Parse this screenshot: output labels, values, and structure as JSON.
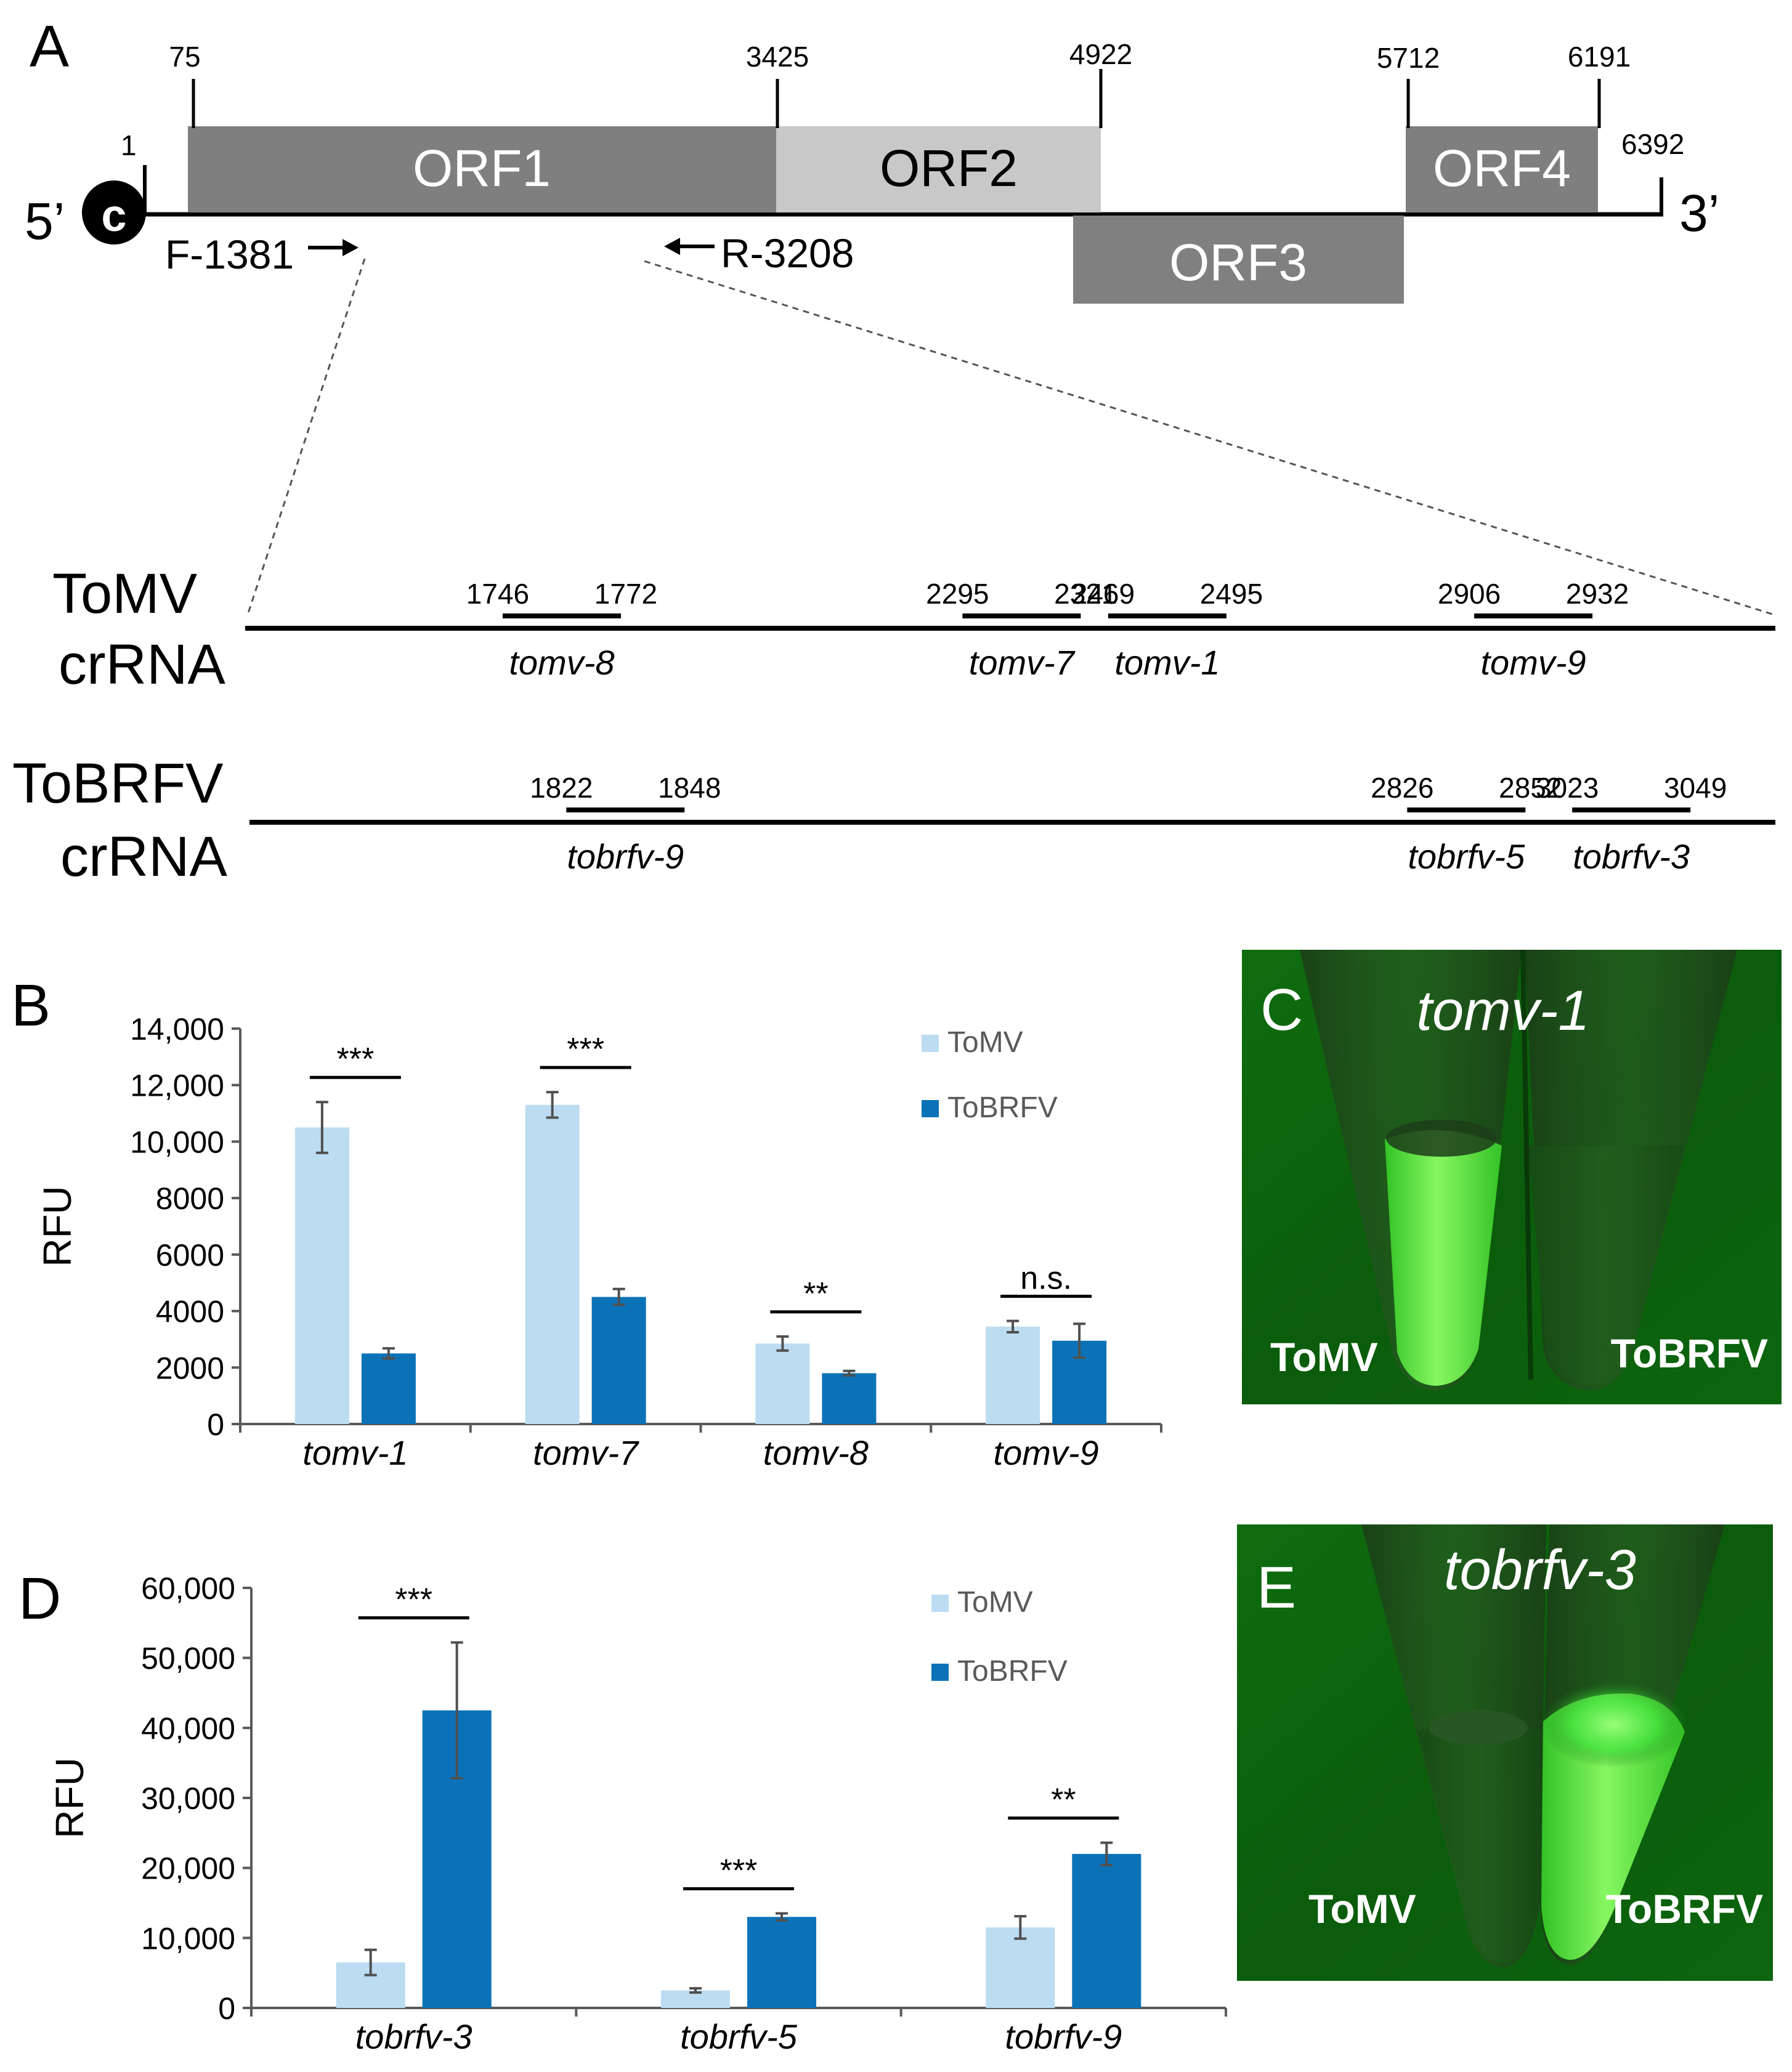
{
  "panel_letters": {
    "a": "A",
    "b": "B",
    "c": "C",
    "d": "D",
    "e": "E"
  },
  "genome": {
    "five_prime": "5’",
    "three_prime": "3’",
    "cap": "c",
    "start_pos": "1",
    "end_pos": "6392",
    "orfs": [
      {
        "label": "ORF1",
        "start": "75",
        "end": "3425",
        "color": "#7f7f7f"
      },
      {
        "label": "ORF2",
        "start": "3425",
        "end": "4922",
        "color": "#c8c8c8"
      },
      {
        "label": "ORF3",
        "start": "",
        "end": "",
        "color": "#808080"
      },
      {
        "label": "ORF4",
        "start": "5712",
        "end": "6191",
        "color": "#7f7f7f"
      }
    ],
    "primer_forward": "F-1381",
    "primer_reverse": "R-3208"
  },
  "crrna_map": {
    "tomv": {
      "label_line1": "ToMV",
      "label_line2": "crRNA",
      "sites": [
        {
          "name": "tomv-8",
          "start": "1746",
          "end": "1772"
        },
        {
          "name": "tomv-7",
          "start": "2295",
          "end": "2321"
        },
        {
          "name": "tomv-1",
          "start": "2469",
          "end": "2495"
        },
        {
          "name": "tomv-9",
          "start": "2906",
          "end": "2932"
        }
      ]
    },
    "tobrfv": {
      "label_line1": "ToBRFV",
      "label_line2": "crRNA",
      "sites": [
        {
          "name": "tobrfv-9",
          "start": "1822",
          "end": "1848"
        },
        {
          "name": "tobrfv-5",
          "start": "2826",
          "end": "2852"
        },
        {
          "name": "tobrfv-3",
          "start": "3023",
          "end": "3049"
        }
      ]
    }
  },
  "chart_data": [
    {
      "type": "bar",
      "panel": "B",
      "ylabel": "RFU",
      "ylim": [
        0,
        14000
      ],
      "yticks": [
        "0",
        "2000",
        "4000",
        "6000",
        "8000",
        "10000",
        "12000",
        "14000"
      ],
      "yticks_display": [
        "0",
        "2000",
        "4000",
        "6000",
        "8000",
        "10,000",
        "12,000",
        "14,000"
      ],
      "categories": [
        "tomv-1",
        "tomv-7",
        "tomv-8",
        "tomv-9"
      ],
      "series": [
        {
          "name": "ToMV",
          "color": "#bcdcf2",
          "values": [
            10500,
            11300,
            2850,
            3450
          ],
          "errors": [
            900,
            450,
            250,
            200
          ]
        },
        {
          "name": "ToBRFV",
          "color": "#0b72b8",
          "values": [
            2500,
            4500,
            1800,
            2950
          ],
          "errors": [
            180,
            280,
            80,
            600
          ]
        }
      ],
      "significance": [
        "***",
        "***",
        "**",
        "n.s."
      ],
      "legend_position": "top-right"
    },
    {
      "type": "bar",
      "panel": "D",
      "ylabel": "RFU",
      "ylim": [
        0,
        60000
      ],
      "yticks": [
        "0",
        "10000",
        "20000",
        "30000",
        "40000",
        "50000",
        "60000"
      ],
      "yticks_display": [
        "0",
        "10,000",
        "20,000",
        "30,000",
        "40,000",
        "50,000",
        "60,000"
      ],
      "categories": [
        "tobrfv-3",
        "tobrfv-5",
        "tobrfv-9"
      ],
      "series": [
        {
          "name": "ToMV",
          "color": "#bcdcf2",
          "values": [
            6500,
            2500,
            11500
          ],
          "errors": [
            1800,
            300,
            1600
          ]
        },
        {
          "name": "ToBRFV",
          "color": "#0b72b8",
          "values": [
            42500,
            13000,
            22000
          ],
          "errors": [
            9700,
            500,
            1600
          ]
        }
      ],
      "significance": [
        "***",
        "***",
        "**"
      ],
      "legend_position": "top-right"
    }
  ],
  "photos": {
    "c": {
      "title": "tomv-1",
      "left_label": "ToMV",
      "right_label": "ToBRFV"
    },
    "e": {
      "title": "tobrfv-3",
      "left_label": "ToMV",
      "right_label": "ToBRFV"
    }
  }
}
